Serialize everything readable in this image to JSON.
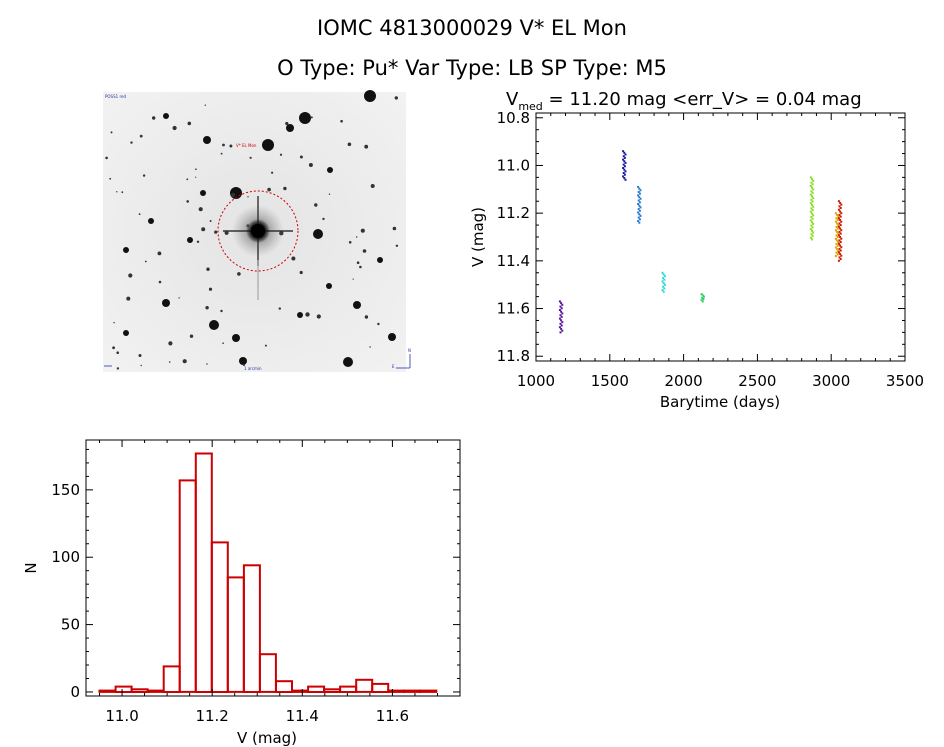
{
  "header": {
    "title": "IOMC 4813000029    V* EL Mon",
    "subtitle": "O Type: Pu*   Var Type: LB   SP Type: M5"
  },
  "image_panel": {
    "tiny_labels": [
      "POSS1 red",
      "V* EL Mon",
      "1 arcmin",
      "N",
      "E"
    ],
    "circle_color": "#cc0000"
  },
  "chart_data": [
    {
      "type": "scatter",
      "title_parts": {
        "prefix": "V",
        "subscript": "med",
        "suffix": " = 11.20 mag <err_V> = 0.04 mag"
      },
      "xlabel": "Barytime (days)",
      "ylabel": "V (mag)",
      "xlim": [
        1000,
        3500
      ],
      "ylim": [
        11.82,
        10.78
      ],
      "y_inverted": true,
      "xticks": [
        1000,
        1500,
        2000,
        2500,
        3000,
        3500
      ],
      "yticks": [
        10.8,
        11.0,
        11.2,
        11.4,
        11.6,
        11.8
      ],
      "ytick_labels": [
        "10.8",
        "11.0",
        "11.2",
        "11.4",
        "11.6",
        "11.8"
      ],
      "groups": [
        {
          "x": 1170,
          "ymin": 11.57,
          "ymax": 11.7,
          "color": "#5a1a9a"
        },
        {
          "x": 1598,
          "ymin": 10.94,
          "ymax": 11.06,
          "color": "#1a1aa0"
        },
        {
          "x": 1700,
          "ymin": 11.09,
          "ymax": 11.24,
          "color": "#2a7ad0"
        },
        {
          "x": 1865,
          "ymin": 11.45,
          "ymax": 11.53,
          "color": "#30d8d8"
        },
        {
          "x": 2130,
          "ymin": 11.54,
          "ymax": 11.57,
          "color": "#30d060"
        },
        {
          "x": 2870,
          "ymin": 11.05,
          "ymax": 11.31,
          "color": "#88e020"
        },
        {
          "x": 3040,
          "ymin": 11.2,
          "ymax": 11.38,
          "color": "#e0a000"
        },
        {
          "x": 3060,
          "ymin": 11.15,
          "ymax": 11.4,
          "color": "#cc1a00"
        }
      ]
    },
    {
      "type": "bar",
      "xlabel": "V (mag)",
      "ylabel": "N",
      "xlim": [
        10.92,
        11.75
      ],
      "ylim": [
        -3,
        187
      ],
      "xticks": [
        11.0,
        11.2,
        11.4,
        11.6
      ],
      "xtick_labels": [
        "11.0",
        "11.2",
        "11.4",
        "11.6"
      ],
      "yticks": [
        0,
        50,
        100,
        150
      ],
      "ytick_labels": [
        "0",
        "50",
        "100",
        "150"
      ],
      "bin_start": 10.95,
      "bin_width": 0.0356,
      "values": [
        1,
        4,
        2,
        1,
        19,
        157,
        177,
        111,
        85,
        94,
        28,
        8,
        1,
        4,
        2,
        4,
        9,
        6,
        1,
        1,
        1
      ],
      "color": "#cc0000"
    }
  ]
}
